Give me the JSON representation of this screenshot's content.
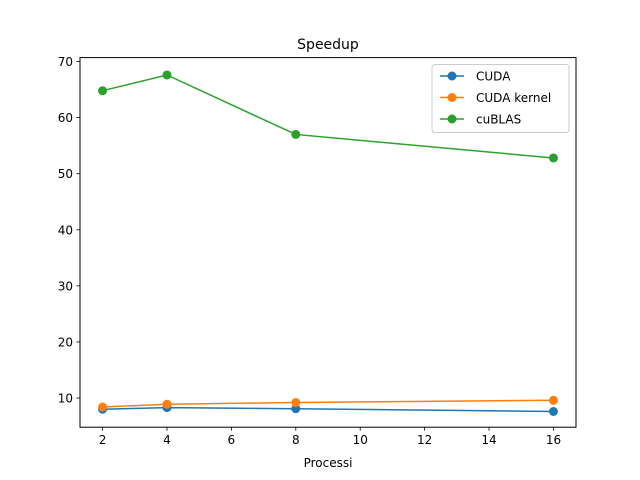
{
  "chart_data": {
    "type": "line",
    "title": "Speedup",
    "xlabel": "Processi",
    "ylabel": "",
    "xlim": [
      1.3,
      16.7
    ],
    "ylim": [
      4.8,
      70.7
    ],
    "xticks": [
      2,
      4,
      6,
      8,
      10,
      12,
      14,
      16
    ],
    "yticks": [
      10,
      20,
      30,
      40,
      50,
      60,
      70
    ],
    "x": [
      2,
      4,
      8,
      16
    ],
    "series": [
      {
        "name": "CUDA",
        "color": "#1f77b4",
        "values": [
          8.0,
          8.3,
          8.1,
          7.6
        ]
      },
      {
        "name": "CUDA kernel",
        "color": "#ff7f0e",
        "values": [
          8.4,
          8.9,
          9.2,
          9.6
        ]
      },
      {
        "name": "cuBLAS",
        "color": "#2ca02c",
        "values": [
          64.8,
          67.6,
          57.0,
          52.8
        ]
      }
    ],
    "legend": "top-right",
    "grid": false
  }
}
